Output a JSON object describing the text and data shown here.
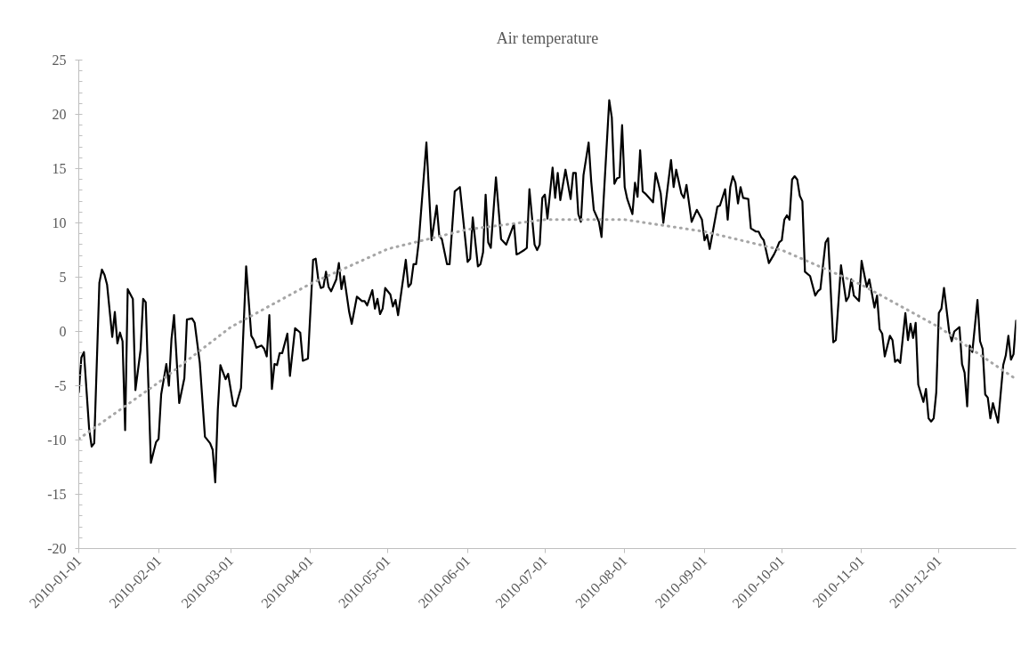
{
  "chart_data": {
    "type": "line",
    "title": "Air temperature",
    "xlim": [
      "2010-01-01",
      "2010-12-31"
    ],
    "xticks": [
      "2010-01-01",
      "2010-02-01",
      "2010-03-01",
      "2010-04-01",
      "2010-05-01",
      "2010-06-01",
      "2010-07-01",
      "2010-08-01",
      "2010-09-01",
      "2010-10-01",
      "2010-11-01",
      "2010-12-01"
    ],
    "ylim": [
      -20,
      25
    ],
    "yticks": [
      -20,
      -15,
      -10,
      -5,
      0,
      5,
      10,
      15,
      20,
      25
    ],
    "series": [
      {
        "color": "#000000",
        "line_style": "solid",
        "x": [
          "2010-01-01",
          "2010-01-02",
          "2010-01-03",
          "2010-01-05",
          "2010-01-06",
          "2010-01-07",
          "2010-01-09",
          "2010-01-10",
          "2010-01-11",
          "2010-01-12",
          "2010-01-14",
          "2010-01-15",
          "2010-01-16",
          "2010-01-17",
          "2010-01-18",
          "2010-01-19",
          "2010-01-20",
          "2010-01-22",
          "2010-01-23",
          "2010-01-25",
          "2010-01-26",
          "2010-01-27",
          "2010-01-29",
          "2010-01-31",
          "2010-02-01",
          "2010-02-02",
          "2010-02-04",
          "2010-02-05",
          "2010-02-06",
          "2010-02-07",
          "2010-02-09",
          "2010-02-11",
          "2010-02-12",
          "2010-02-14",
          "2010-02-15",
          "2010-02-17",
          "2010-02-19",
          "2010-02-21",
          "2010-02-22",
          "2010-02-23",
          "2010-02-24",
          "2010-02-25",
          "2010-02-27",
          "2010-02-28",
          "2010-03-02",
          "2010-03-03",
          "2010-03-05",
          "2010-03-07",
          "2010-03-09",
          "2010-03-10",
          "2010-03-11",
          "2010-03-13",
          "2010-03-14",
          "2010-03-15",
          "2010-03-16",
          "2010-03-17",
          "2010-03-18",
          "2010-03-19",
          "2010-03-20",
          "2010-03-21",
          "2010-03-23",
          "2010-03-24",
          "2010-03-26",
          "2010-03-28",
          "2010-03-29",
          "2010-03-31",
          "2010-04-02",
          "2010-04-03",
          "2010-04-04",
          "2010-04-05",
          "2010-04-06",
          "2010-04-07",
          "2010-04-08",
          "2010-04-09",
          "2010-04-11",
          "2010-04-12",
          "2010-04-13",
          "2010-04-14",
          "2010-04-16",
          "2010-04-17",
          "2010-04-19",
          "2010-04-21",
          "2010-04-22",
          "2010-04-23",
          "2010-04-25",
          "2010-04-26",
          "2010-04-27",
          "2010-04-28",
          "2010-04-29",
          "2010-04-30",
          "2010-05-02",
          "2010-05-03",
          "2010-05-04",
          "2010-05-05",
          "2010-05-08",
          "2010-05-09",
          "2010-05-10",
          "2010-05-11",
          "2010-05-12",
          "2010-05-13",
          "2010-05-16",
          "2010-05-18",
          "2010-05-20",
          "2010-05-21",
          "2010-05-22",
          "2010-05-24",
          "2010-05-25",
          "2010-05-27",
          "2010-05-29",
          "2010-06-01",
          "2010-06-02",
          "2010-06-03",
          "2010-06-05",
          "2010-06-06",
          "2010-06-07",
          "2010-06-08",
          "2010-06-09",
          "2010-06-10",
          "2010-06-12",
          "2010-06-14",
          "2010-06-16",
          "2010-06-19",
          "2010-06-20",
          "2010-06-21",
          "2010-06-23",
          "2010-06-24",
          "2010-06-25",
          "2010-06-27",
          "2010-06-28",
          "2010-06-29",
          "2010-06-30",
          "2010-07-01",
          "2010-07-02",
          "2010-07-04",
          "2010-07-05",
          "2010-07-06",
          "2010-07-07",
          "2010-07-09",
          "2010-07-11",
          "2010-07-12",
          "2010-07-13",
          "2010-07-14",
          "2010-07-15",
          "2010-07-16",
          "2010-07-18",
          "2010-07-19",
          "2010-07-20",
          "2010-07-22",
          "2010-07-23",
          "2010-07-26",
          "2010-07-27",
          "2010-07-28",
          "2010-07-29",
          "2010-07-30",
          "2010-07-31",
          "2010-08-01",
          "2010-08-02",
          "2010-08-04",
          "2010-08-05",
          "2010-08-06",
          "2010-08-07",
          "2010-08-08",
          "2010-08-09",
          "2010-08-12",
          "2010-08-13",
          "2010-08-14",
          "2010-08-15",
          "2010-08-16",
          "2010-08-19",
          "2010-08-20",
          "2010-08-21",
          "2010-08-23",
          "2010-08-24",
          "2010-08-25",
          "2010-08-27",
          "2010-08-29",
          "2010-08-31",
          "2010-09-01",
          "2010-09-02",
          "2010-09-03",
          "2010-09-06",
          "2010-09-07",
          "2010-09-09",
          "2010-09-10",
          "2010-09-11",
          "2010-09-12",
          "2010-09-13",
          "2010-09-14",
          "2010-09-15",
          "2010-09-16",
          "2010-09-18",
          "2010-09-19",
          "2010-09-21",
          "2010-09-22",
          "2010-09-23",
          "2010-09-24",
          "2010-09-26",
          "2010-09-28",
          "2010-09-29",
          "2010-09-30",
          "2010-10-01",
          "2010-10-02",
          "2010-10-03",
          "2010-10-04",
          "2010-10-05",
          "2010-10-06",
          "2010-10-07",
          "2010-10-08",
          "2010-10-09",
          "2010-10-10",
          "2010-10-12",
          "2010-10-14",
          "2010-10-15",
          "2010-10-16",
          "2010-10-18",
          "2010-10-19",
          "2010-10-21",
          "2010-10-22",
          "2010-10-24",
          "2010-10-26",
          "2010-10-27",
          "2010-10-28",
          "2010-10-29",
          "2010-10-31",
          "2010-11-01",
          "2010-11-03",
          "2010-11-04",
          "2010-11-06",
          "2010-11-07",
          "2010-11-08",
          "2010-11-09",
          "2010-11-10",
          "2010-11-12",
          "2010-11-13",
          "2010-11-14",
          "2010-11-15",
          "2010-11-16",
          "2010-11-18",
          "2010-11-19",
          "2010-11-20",
          "2010-11-21",
          "2010-11-22",
          "2010-11-23",
          "2010-11-25",
          "2010-11-26",
          "2010-11-27",
          "2010-11-28",
          "2010-11-29",
          "2010-11-30",
          "2010-12-01",
          "2010-12-02",
          "2010-12-03",
          "2010-12-05",
          "2010-12-06",
          "2010-12-07",
          "2010-12-09",
          "2010-12-10",
          "2010-12-11",
          "2010-12-12",
          "2010-12-13",
          "2010-12-14",
          "2010-12-16",
          "2010-12-17",
          "2010-12-18",
          "2010-12-19",
          "2010-12-20",
          "2010-12-21",
          "2010-12-22",
          "2010-12-24",
          "2010-12-26",
          "2010-12-27",
          "2010-12-28",
          "2010-12-29",
          "2010-12-30",
          "2010-12-31"
        ],
        "values": [
          -5.6,
          -2.4,
          -1.9,
          -8.9,
          -10.6,
          -10.3,
          4.5,
          5.7,
          5.2,
          4.3,
          -0.5,
          1.8,
          -1.1,
          -0.1,
          -0.9,
          -9.1,
          3.9,
          3.0,
          -5.4,
          -1.7,
          3.0,
          2.7,
          -12.1,
          -10.2,
          -9.9,
          -5.8,
          -3.0,
          -5.0,
          -0.7,
          1.5,
          -6.6,
          -4.3,
          1.1,
          1.2,
          0.8,
          -2.9,
          -9.7,
          -10.3,
          -10.9,
          -13.9,
          -7.2,
          -3.1,
          -4.4,
          -3.9,
          -6.8,
          -6.9,
          -5.2,
          6.0,
          -0.4,
          -0.8,
          -1.5,
          -1.3,
          -1.6,
          -2.3,
          1.5,
          -5.3,
          -3.0,
          -3.1,
          -2.0,
          -2.0,
          -0.2,
          -4.1,
          0.3,
          -0.1,
          -2.7,
          -2.5,
          6.6,
          6.7,
          4.8,
          4.0,
          4.1,
          5.5,
          4.1,
          3.7,
          4.8,
          6.3,
          3.9,
          5.1,
          1.8,
          0.7,
          3.2,
          2.8,
          2.8,
          2.4,
          3.8,
          2.1,
          3.0,
          1.6,
          2.1,
          4.0,
          3.4,
          2.3,
          2.9,
          1.5,
          6.6,
          4.1,
          4.4,
          6.2,
          6.2,
          8.2,
          17.4,
          8.4,
          11.6,
          8.8,
          8.5,
          6.2,
          6.2,
          12.9,
          13.3,
          6.4,
          6.7,
          10.5,
          6.0,
          6.2,
          7.3,
          12.6,
          8.2,
          7.7,
          14.2,
          8.5,
          8.0,
          9.9,
          7.1,
          7.2,
          7.5,
          7.7,
          13.1,
          8.0,
          7.5,
          8.0,
          12.3,
          12.6,
          10.4,
          15.1,
          12.3,
          14.6,
          12.1,
          14.9,
          12.2,
          14.6,
          14.6,
          10.8,
          10.1,
          14.4,
          17.4,
          13.8,
          11.2,
          10.1,
          8.7,
          21.3,
          19.7,
          13.6,
          14.1,
          14.2,
          19.0,
          13.3,
          12.2,
          10.8,
          13.7,
          12.4,
          16.7,
          12.9,
          12.7,
          11.9,
          14.6,
          13.7,
          12.7,
          10.0,
          15.8,
          13.3,
          14.9,
          12.7,
          12.3,
          13.5,
          10.1,
          11.2,
          10.3,
          8.4,
          8.9,
          7.6,
          11.5,
          11.6,
          13.1,
          10.3,
          13.3,
          14.3,
          13.7,
          11.8,
          13.3,
          12.3,
          12.2,
          9.5,
          9.2,
          9.2,
          8.7,
          8.4,
          6.3,
          7.1,
          7.6,
          8.2,
          8.4,
          10.3,
          10.7,
          10.3,
          14.0,
          14.3,
          14.0,
          12.5,
          12.0,
          5.5,
          5.1,
          3.3,
          3.7,
          3.9,
          8.2,
          8.6,
          -1.0,
          -0.8,
          6.1,
          2.8,
          3.2,
          4.8,
          3.3,
          2.8,
          6.5,
          4.1,
          4.8,
          2.2,
          3.3,
          0.2,
          -0.2,
          -2.3,
          -0.4,
          -0.8,
          -2.8,
          -2.6,
          -2.9,
          1.7,
          -0.8,
          0.7,
          -0.6,
          0.8,
          -4.9,
          -6.5,
          -5.3,
          -8.0,
          -8.3,
          -8.0,
          -5.6,
          1.7,
          2.1,
          4.0,
          0.0,
          -0.9,
          0.0,
          0.4,
          -3.0,
          -3.8,
          -6.9,
          -1.3,
          -1.9,
          2.9,
          -0.9,
          -1.6,
          -5.8,
          -6.1,
          -8.0,
          -6.6,
          -8.4,
          -3.1,
          -2.2,
          -0.4,
          -2.6,
          -2.1,
          1.0
        ]
      },
      {
        "type": "line",
        "color": "#a6a6a6",
        "line_style": "dotted",
        "x": [
          "2010-01-01",
          "2010-02-01",
          "2010-03-01",
          "2010-04-01",
          "2010-05-01",
          "2010-06-01",
          "2010-07-01",
          "2010-08-01",
          "2010-09-01",
          "2010-10-01",
          "2010-11-01",
          "2010-12-01",
          "2010-12-31"
        ],
        "values": [
          -9.9,
          -4.7,
          0.4,
          4.4,
          7.6,
          9.4,
          10.3,
          10.3,
          9.2,
          7.5,
          4.3,
          0.4,
          -4.4
        ]
      }
    ]
  }
}
